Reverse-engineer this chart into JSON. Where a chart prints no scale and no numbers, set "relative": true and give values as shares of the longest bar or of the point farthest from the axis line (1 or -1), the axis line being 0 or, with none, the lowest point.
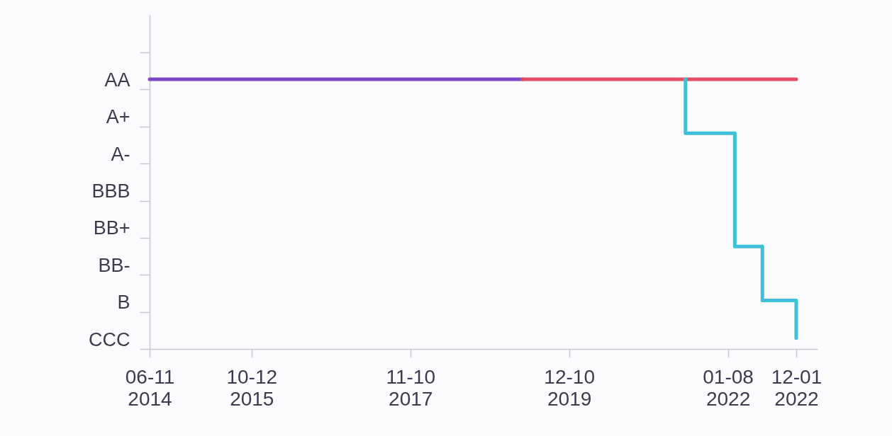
{
  "chart_data": {
    "type": "line",
    "relative": true,
    "xlim": [
      "2014-06-11",
      "2023-03-13"
    ],
    "xticks": [
      {
        "value": "2014-06-11",
        "label": "06-11\n2014"
      },
      {
        "value": "2015-10-12",
        "label": "10-12\n2015"
      },
      {
        "value": "2017-11-10",
        "label": "11-10\n2017"
      },
      {
        "value": "2019-12-10",
        "label": "12-10\n2019"
      },
      {
        "value": "2022-01-08",
        "label": "01-08\n2022"
      },
      {
        "value": "2022-12-01",
        "label": "12-01\n2022"
      }
    ],
    "y_categories": [
      null,
      "AA",
      "A+",
      "A-",
      "BBB",
      "BB+",
      "BB-",
      "B",
      "CCC"
    ],
    "series": [
      {
        "color": "#8046c8",
        "x": [
          "2014-06-11",
          "2019-05-01"
        ],
        "values": [
          1,
          1
        ]
      },
      {
        "color": "#e44d64",
        "x": [
          "2019-05-01",
          "2022-12-01"
        ],
        "values": [
          1,
          1
        ]
      },
      {
        "type": "step",
        "color": "#3fc0d8",
        "x": [
          "2021-06-19",
          "2021-06-19",
          "2022-02-10",
          "2022-06-22",
          "2022-12-01"
        ],
        "values": [
          1,
          0.8,
          0.38,
          0.18,
          0.04
        ]
      }
    ]
  }
}
